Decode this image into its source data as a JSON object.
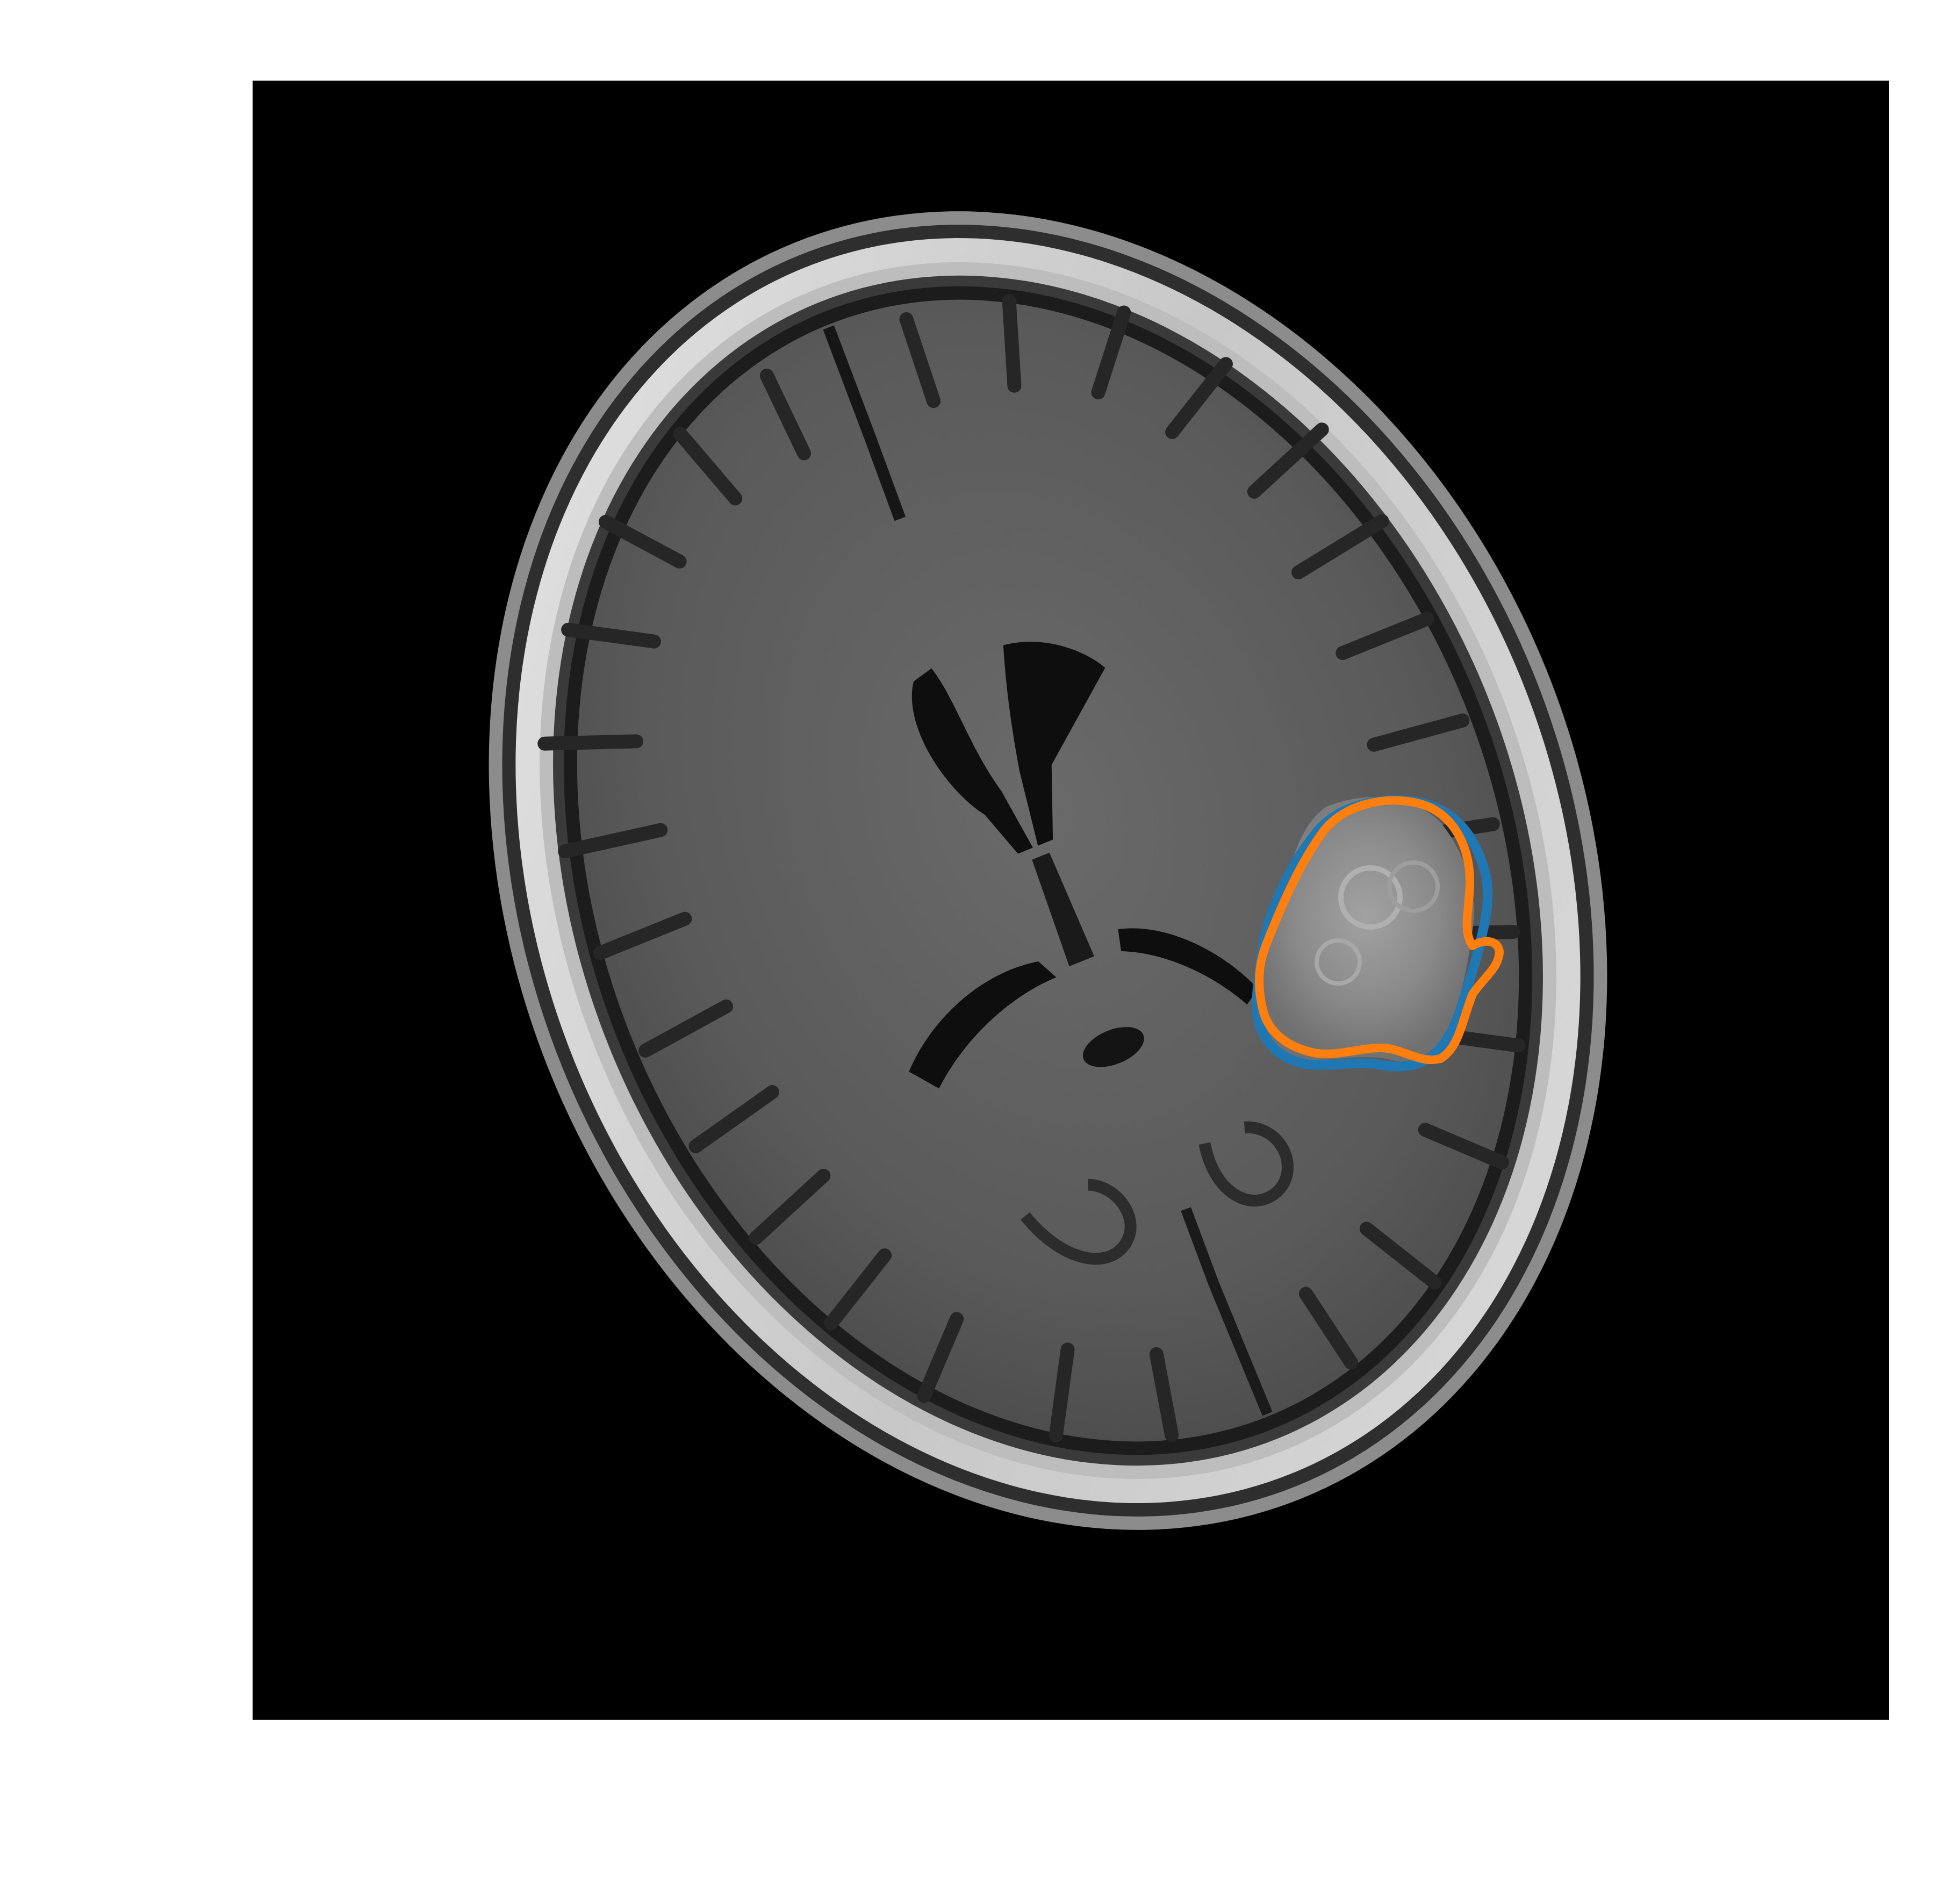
{
  "figure": {
    "background_color": "#ffffff",
    "panel_background_color": "#000000"
  },
  "scan": {
    "modality_hint": "axial-brain-mri",
    "colors": {
      "skull": "#d8d8d8",
      "scalp": "#9a9a9a",
      "csf_gap": "#1c1c1c",
      "brain_tissue": "#5c5c5c",
      "ventricles": "#0e0e0e",
      "sulci": "#2a2a2a",
      "lesion": "#8a8a8a"
    }
  },
  "contours": [
    {
      "label_icon": "ground-truth-contour",
      "color": "#1f77b4"
    },
    {
      "label_icon": "predicted-contour",
      "color": "#ff7f0e"
    }
  ]
}
